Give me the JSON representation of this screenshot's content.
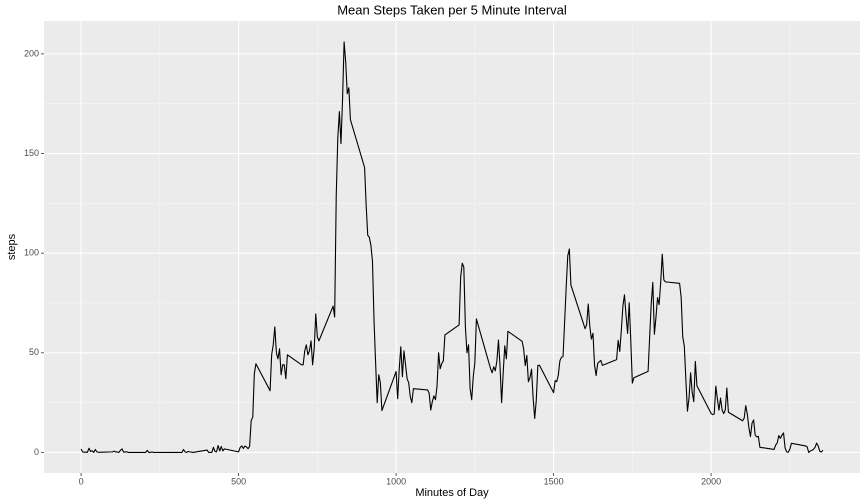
{
  "chart_data": {
    "type": "line",
    "title": "Mean Steps Taken per 5 Minute Interval",
    "x_label": "Minutes of Day",
    "y_label": "steps",
    "color": "#000000",
    "grid": true,
    "xlim": [
      -117.75,
      2472.75
    ],
    "ylim": [
      -10.3,
      216.5
    ],
    "xticks": [
      0,
      500,
      1000,
      1500,
      2000
    ],
    "yticks": [
      0,
      50,
      100,
      150,
      200
    ],
    "minor_xticks": [
      250,
      750,
      1250,
      1750,
      2250
    ],
    "minor_yticks": [
      25,
      75,
      125,
      175
    ],
    "x": [
      0,
      5,
      10,
      15,
      20,
      25,
      30,
      35,
      40,
      45,
      50,
      55,
      100,
      105,
      110,
      115,
      120,
      125,
      130,
      135,
      140,
      145,
      150,
      155,
      200,
      205,
      210,
      215,
      220,
      225,
      230,
      235,
      240,
      245,
      250,
      255,
      300,
      305,
      310,
      315,
      320,
      325,
      330,
      335,
      340,
      345,
      350,
      355,
      400,
      405,
      410,
      415,
      420,
      425,
      430,
      435,
      440,
      445,
      450,
      455,
      500,
      505,
      510,
      515,
      520,
      525,
      530,
      535,
      540,
      545,
      550,
      555,
      600,
      605,
      610,
      615,
      620,
      625,
      630,
      635,
      640,
      645,
      650,
      655,
      700,
      705,
      710,
      715,
      720,
      725,
      730,
      735,
      740,
      745,
      750,
      755,
      800,
      805,
      810,
      815,
      820,
      825,
      830,
      835,
      840,
      845,
      850,
      855,
      900,
      905,
      910,
      915,
      920,
      925,
      930,
      935,
      940,
      945,
      950,
      955,
      1000,
      1005,
      1010,
      1015,
      1020,
      1025,
      1030,
      1035,
      1040,
      1045,
      1050,
      1055,
      1100,
      1105,
      1110,
      1115,
      1120,
      1125,
      1130,
      1135,
      1140,
      1145,
      1150,
      1155,
      1200,
      1205,
      1210,
      1215,
      1220,
      1225,
      1230,
      1235,
      1240,
      1245,
      1250,
      1255,
      1300,
      1305,
      1310,
      1315,
      1320,
      1325,
      1330,
      1335,
      1340,
      1345,
      1350,
      1355,
      1400,
      1405,
      1410,
      1415,
      1420,
      1425,
      1430,
      1435,
      1440,
      1445,
      1450,
      1455,
      1500,
      1505,
      1510,
      1515,
      1520,
      1525,
      1530,
      1535,
      1540,
      1545,
      1550,
      1555,
      1600,
      1605,
      1610,
      1615,
      1620,
      1625,
      1630,
      1635,
      1640,
      1645,
      1650,
      1655,
      1700,
      1705,
      1710,
      1715,
      1720,
      1725,
      1730,
      1735,
      1740,
      1745,
      1750,
      1755,
      1800,
      1805,
      1810,
      1815,
      1820,
      1825,
      1830,
      1835,
      1840,
      1845,
      1850,
      1855,
      1900,
      1905,
      1910,
      1915,
      1920,
      1925,
      1930,
      1935,
      1940,
      1945,
      1950,
      1955,
      2000,
      2005,
      2010,
      2015,
      2020,
      2025,
      2030,
      2035,
      2040,
      2045,
      2050,
      2055,
      2100,
      2105,
      2110,
      2115,
      2120,
      2125,
      2130,
      2135,
      2140,
      2145,
      2150,
      2155,
      2200,
      2205,
      2210,
      2215,
      2220,
      2225,
      2230,
      2235,
      2240,
      2245,
      2250,
      2255,
      2300,
      2305,
      2310,
      2315,
      2320,
      2325,
      2330,
      2335,
      2340,
      2345,
      2350,
      2355
    ],
    "values": [
      1.7,
      0.3,
      0.1,
      0.2,
      0.1,
      2.1,
      0.5,
      0.9,
      0,
      1.5,
      0.3,
      0.1,
      0.3,
      0.7,
      0.2,
      0.3,
      0,
      1.1,
      1.8,
      0.2,
      0.2,
      0.4,
      0,
      0,
      0,
      0,
      1.1,
      0,
      0,
      0.3,
      0,
      0,
      0,
      0,
      0,
      0,
      0,
      0,
      0,
      0,
      0,
      1.5,
      0.3,
      0,
      0.5,
      0.3,
      0.2,
      0,
      1.2,
      0,
      0,
      0,
      2.6,
      0.5,
      0.3,
      3.5,
      0.8,
      3.0,
      0.8,
      1.8,
      0.3,
      2.5,
      3.3,
      2.0,
      3.2,
      2.8,
      1.9,
      3.1,
      16.0,
      17.7,
      39.5,
      44.5,
      31,
      49,
      54,
      63,
      50,
      47,
      52,
      39,
      44,
      44,
      37,
      49,
      44,
      44,
      51,
      54,
      49,
      51,
      56,
      44,
      52,
      69.5,
      58,
      56,
      73.4,
      68,
      129,
      158,
      171,
      155,
      177,
      206,
      196,
      180,
      183,
      167,
      143,
      124,
      109,
      108,
      104,
      96,
      66,
      45,
      25,
      39,
      35,
      21,
      40.6,
      27,
      42,
      53,
      38,
      51,
      44,
      37,
      35,
      28,
      25,
      32,
      31.4,
      29.7,
      21.3,
      25.5,
      28.4,
      26.5,
      33.4,
      50,
      42,
      44.6,
      46,
      59,
      64,
      88,
      95,
      93,
      63,
      50,
      54,
      32,
      26.5,
      38,
      45,
      67,
      42,
      40,
      43,
      41,
      46,
      56.4,
      43,
      25,
      40,
      53.5,
      47,
      60.8,
      55.8,
      51.9,
      43.6,
      48.7,
      35.5,
      37.5,
      41.8,
      27.5,
      17.1,
      26.1,
      43.6,
      43.8,
      30,
      36.1,
      35.5,
      38.8,
      46,
      47.8,
      48.1,
      65.3,
      82.9,
      98.7,
      102.1,
      84,
      62.1,
      64.1,
      74.5,
      63.2,
      56.9,
      59.8,
      43.9,
      38.6,
      44.7,
      45.5,
      46.2,
      43.7,
      46.6,
      56.3,
      50.7,
      61.2,
      73.4,
      79.1,
      68.9,
      59.7,
      75.1,
      56.5,
      34.8,
      37.5,
      40.7,
      58,
      74.7,
      85.3,
      59.3,
      67.8,
      77.7,
      74.2,
      85.3,
      99.5,
      86.6,
      85.6,
      84.9,
      77.8,
      58,
      53.4,
      36.3,
      20.7,
      27.4,
      40,
      30.2,
      25.5,
      45.7,
      33.5,
      19.6,
      19,
      19.3,
      33.3,
      26.8,
      21.2,
      27.3,
      21.3,
      19.5,
      21.3,
      32.3,
      20.2,
      15.9,
      17.2,
      23.5,
      19.2,
      12.5,
      8,
      14.7,
      16.3,
      8.7,
      7.8,
      8.1,
      2.6,
      1.5,
      3.7,
      4.8,
      8.5,
      7.1,
      8.7,
      9.8,
      2.2,
      0.3,
      0.1,
      1.6,
      4.6,
      3.3,
      2.8,
      0,
      0.8,
      1,
      1.6,
      2.6,
      4.7,
      3.3,
      0.6,
      0.2,
      1.1
    ]
  }
}
